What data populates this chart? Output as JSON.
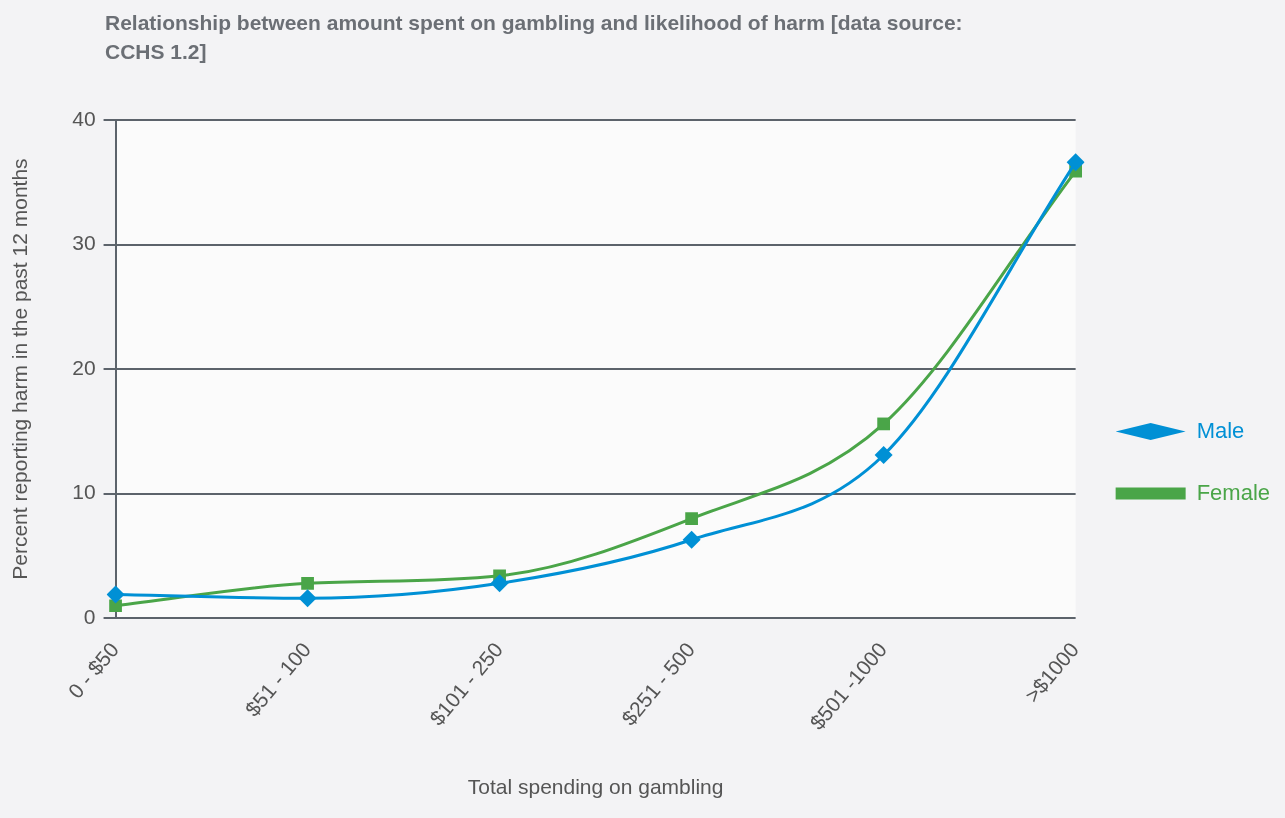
{
  "chart_data": {
    "type": "line",
    "title": "Relationship between amount spent on gambling and likelihood of harm [data source: CCHS 1.2]",
    "xlabel": "Total spending on gambling",
    "ylabel": "Percent reporting harm in the past 12 months",
    "categories": [
      "0 - $50",
      "$51 - 100",
      "$101 - 250",
      "$251 - 500",
      "$501 -1000",
      ">$1000"
    ],
    "series": [
      {
        "name": "Male",
        "color": "#0090d5",
        "marker": "diamond",
        "values": [
          1.9,
          1.6,
          2.8,
          6.3,
          13.1,
          36.6
        ]
      },
      {
        "name": "Female",
        "color": "#4aa548",
        "marker": "square",
        "values": [
          1.0,
          2.8,
          3.4,
          8.0,
          15.6,
          35.9
        ]
      }
    ],
    "ylim": [
      0,
      40
    ],
    "yticks": [
      0,
      10,
      20,
      30,
      40
    ],
    "grid": "y",
    "legend": "right",
    "line_style": "solid"
  }
}
